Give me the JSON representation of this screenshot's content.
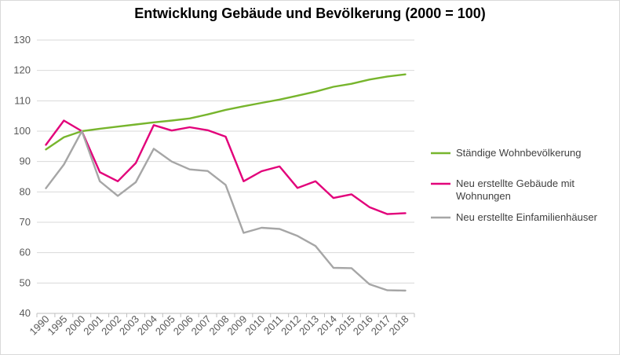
{
  "chart_data": {
    "type": "line",
    "title": "Entwicklung Gebäude und Bevölkerung (2000 = 100)",
    "xlabel": "",
    "ylabel": "",
    "categories": [
      "1990",
      "1995",
      "2000",
      "2001",
      "2002",
      "2003",
      "2004",
      "2005",
      "2006",
      "2007",
      "2008",
      "2009",
      "2010",
      "2011",
      "2012",
      "2013",
      "2014",
      "2015",
      "2016",
      "2017",
      "2018"
    ],
    "ylim": [
      40,
      130
    ],
    "yticks": [
      40,
      50,
      60,
      70,
      80,
      90,
      100,
      110,
      120,
      130
    ],
    "grid": "horizontal",
    "legend_position": "right",
    "series": [
      {
        "name": "Ständige Wohnbevölkerung",
        "color": "#77b52d",
        "values": [
          94,
          98,
          100,
          100.8,
          101.5,
          102.2,
          102.9,
          103.5,
          104.2,
          105.5,
          107,
          108.2,
          109.3,
          110.4,
          111.7,
          113,
          114.6,
          115.6,
          117,
          118,
          118.7
        ]
      },
      {
        "name": "Neu erstellte Gebäude mit Wohnungen",
        "color": "#e2007a",
        "values": [
          95.5,
          103.5,
          100,
          86.5,
          83.5,
          89.5,
          102,
          100.2,
          101.3,
          100.3,
          98.2,
          83.5,
          86.8,
          88.4,
          81.3,
          83.5,
          78,
          79.2,
          75,
          72.7,
          73
        ]
      },
      {
        "name": "Neu erstellte Einfamilienhäuser",
        "color": "#a6a6a6",
        "values": [
          81.2,
          89,
          100,
          83.5,
          78.7,
          83.2,
          94.2,
          90,
          87.4,
          86.9,
          82.3,
          66.5,
          68.2,
          67.8,
          65.5,
          62.2,
          55,
          54.9,
          49.6,
          47.6,
          47.5
        ]
      }
    ]
  }
}
